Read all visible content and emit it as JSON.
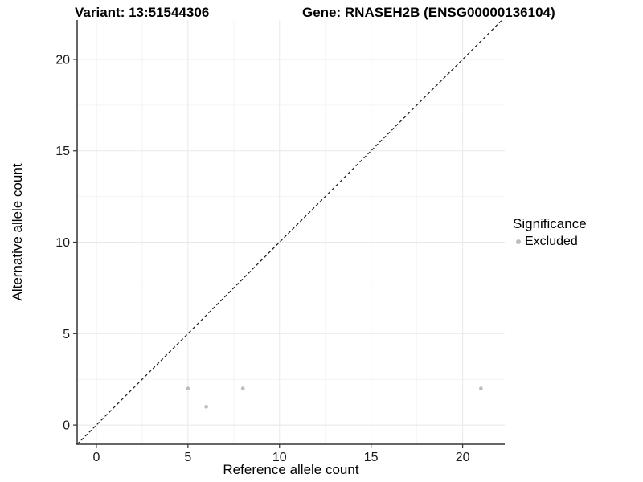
{
  "titles": {
    "variant": "Variant: 13:51544306",
    "gene": "Gene: RNASEH2B (ENSG00000136104)"
  },
  "axes": {
    "x_label": "Reference allele count",
    "y_label": "Alternative allele count"
  },
  "legend": {
    "title": "Significance",
    "items": [
      {
        "label": "Excluded",
        "color": "#bcbcbc"
      }
    ]
  },
  "chart_data": {
    "type": "scatter",
    "title_left": "Variant: 13:51544306",
    "title_right": "Gene: RNASEH2B (ENSG00000136104)",
    "xlabel": "Reference allele count",
    "ylabel": "Alternative allele count",
    "xlim": [
      -1.05,
      22.3
    ],
    "ylim": [
      -1.05,
      22.15
    ],
    "x_ticks": [
      0,
      5,
      10,
      15,
      20
    ],
    "y_ticks": [
      0,
      5,
      10,
      15,
      20
    ],
    "x_minor_ticks": [
      2.5,
      7.5,
      12.5,
      17.5
    ],
    "y_minor_ticks": [
      2.5,
      7.5,
      12.5,
      17.5
    ],
    "grid": "major+minor",
    "legend_position": "right",
    "series": [
      {
        "name": "Excluded",
        "color": "#bcbcbc",
        "points": [
          [
            5,
            2
          ],
          [
            6,
            1
          ],
          [
            8,
            2
          ],
          [
            21,
            2
          ]
        ]
      }
    ],
    "reference_line": {
      "slope": 1,
      "intercept": 0,
      "style": "dashed",
      "color": "#1a1a1a"
    }
  },
  "colors": {
    "background": "#ffffff",
    "axis": "#333333",
    "tick_label": "#1a1a1a",
    "grid_major": "#e8e8e8",
    "grid_minor": "#f4f4f4",
    "point": "#bcbcbc"
  }
}
